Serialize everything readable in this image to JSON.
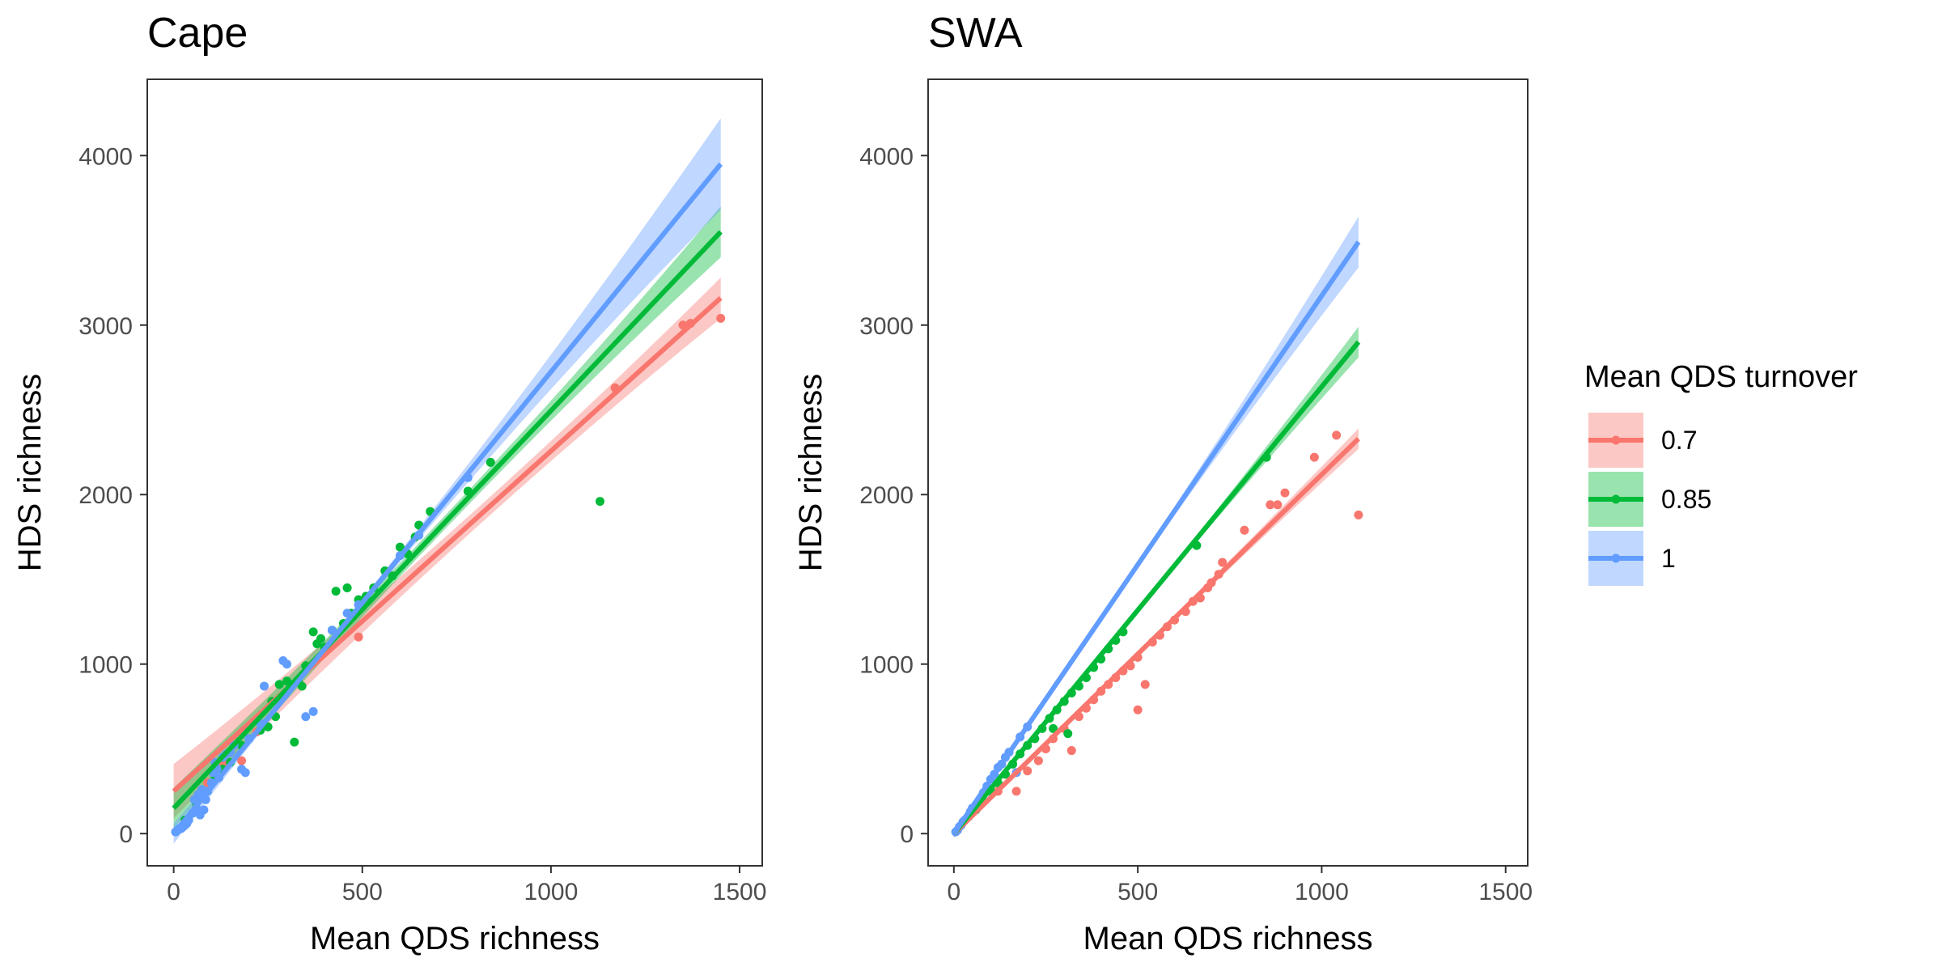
{
  "chart_data": [
    {
      "type": "scatter",
      "title": "Cape",
      "xlabel": "Mean QDS richness",
      "ylabel": "HDS richness",
      "xlim": [
        -70,
        1560
      ],
      "ylim": [
        -190,
        4450
      ],
      "x_ticks": [
        0,
        500,
        1000,
        1500
      ],
      "y_ticks": [
        0,
        1000,
        2000,
        3000,
        4000
      ],
      "grid": false,
      "series": [
        {
          "name": "0.7",
          "color": "#F8766D",
          "fit": {
            "x": [
              0,
              1450
            ],
            "y": [
              250,
              3160
            ]
          },
          "band_width": [
            160,
            55,
            120
          ],
          "points": [
            [
              180,
              430
            ],
            [
              490,
              1160
            ],
            [
              1170,
              2630
            ],
            [
              1350,
              3000
            ],
            [
              1370,
              3010
            ],
            [
              1450,
              3040
            ],
            [
              60,
              200
            ],
            [
              90,
              300
            ],
            [
              130,
              420
            ],
            [
              160,
              520
            ],
            [
              220,
              600
            ]
          ]
        },
        {
          "name": "0.85",
          "color": "#00BA38",
          "fit": {
            "x": [
              0,
              1450
            ],
            "y": [
              150,
              3550
            ]
          },
          "band_width": [
            120,
            40,
            150
          ],
          "points": [
            [
              30,
              80
            ],
            [
              60,
              180
            ],
            [
              90,
              250
            ],
            [
              110,
              330
            ],
            [
              130,
              380
            ],
            [
              150,
              420
            ],
            [
              180,
              520
            ],
            [
              200,
              560
            ],
            [
              230,
              610
            ],
            [
              250,
              630
            ],
            [
              260,
              780
            ],
            [
              270,
              690
            ],
            [
              280,
              880
            ],
            [
              300,
              900
            ],
            [
              320,
              540
            ],
            [
              330,
              900
            ],
            [
              340,
              870
            ],
            [
              350,
              990
            ],
            [
              370,
              1190
            ],
            [
              380,
              1120
            ],
            [
              390,
              1150
            ],
            [
              400,
              1100
            ],
            [
              420,
              1200
            ],
            [
              430,
              1430
            ],
            [
              450,
              1240
            ],
            [
              460,
              1450
            ],
            [
              470,
              1300
            ],
            [
              490,
              1380
            ],
            [
              510,
              1400
            ],
            [
              530,
              1450
            ],
            [
              560,
              1550
            ],
            [
              580,
              1520
            ],
            [
              600,
              1690
            ],
            [
              620,
              1650
            ],
            [
              640,
              1750
            ],
            [
              650,
              1820
            ],
            [
              680,
              1900
            ],
            [
              780,
              2020
            ],
            [
              840,
              2190
            ],
            [
              1130,
              1960
            ]
          ]
        },
        {
          "name": "1",
          "color": "#619CFF",
          "fit": {
            "x": [
              0,
              1450
            ],
            "y": [
              0,
              3950
            ]
          },
          "band_width": [
            60,
            45,
            270
          ],
          "points": [
            [
              5,
              10
            ],
            [
              10,
              20
            ],
            [
              15,
              30
            ],
            [
              20,
              30
            ],
            [
              25,
              40
            ],
            [
              30,
              50
            ],
            [
              35,
              60
            ],
            [
              40,
              80
            ],
            [
              50,
              120
            ],
            [
              55,
              200
            ],
            [
              60,
              150
            ],
            [
              65,
              230
            ],
            [
              70,
              110
            ],
            [
              75,
              260
            ],
            [
              80,
              140
            ],
            [
              85,
              200
            ],
            [
              90,
              250
            ],
            [
              100,
              300
            ],
            [
              105,
              360
            ],
            [
              110,
              420
            ],
            [
              115,
              380
            ],
            [
              120,
              330
            ],
            [
              130,
              450
            ],
            [
              140,
              470
            ],
            [
              150,
              480
            ],
            [
              160,
              520
            ],
            [
              180,
              380
            ],
            [
              190,
              360
            ],
            [
              200,
              560
            ],
            [
              230,
              650
            ],
            [
              240,
              870
            ],
            [
              290,
              1020
            ],
            [
              300,
              1000
            ],
            [
              350,
              690
            ],
            [
              370,
              720
            ],
            [
              420,
              1200
            ],
            [
              460,
              1300
            ],
            [
              490,
              1350
            ],
            [
              600,
              1640
            ],
            [
              650,
              1760
            ],
            [
              780,
              2100
            ]
          ]
        }
      ]
    },
    {
      "type": "scatter",
      "title": "SWA",
      "xlabel": "Mean QDS richness",
      "ylabel": "HDS richness",
      "xlim": [
        -70,
        1560
      ],
      "ylim": [
        -190,
        4450
      ],
      "x_ticks": [
        0,
        500,
        1000,
        1500
      ],
      "y_ticks": [
        0,
        1000,
        2000,
        3000,
        4000
      ],
      "grid": false,
      "series": [
        {
          "name": "0.7",
          "color": "#F8766D",
          "fit": {
            "x": [
              0,
              1100
            ],
            "y": [
              0,
              2330
            ]
          },
          "band_width": [
            25,
            15,
            60
          ],
          "points": [
            [
              120,
              250
            ],
            [
              170,
              250
            ],
            [
              200,
              370
            ],
            [
              230,
              430
            ],
            [
              250,
              500
            ],
            [
              270,
              560
            ],
            [
              300,
              620
            ],
            [
              320,
              490
            ],
            [
              340,
              690
            ],
            [
              360,
              740
            ],
            [
              380,
              790
            ],
            [
              400,
              840
            ],
            [
              420,
              880
            ],
            [
              440,
              920
            ],
            [
              460,
              960
            ],
            [
              480,
              990
            ],
            [
              500,
              1040
            ],
            [
              500,
              730
            ],
            [
              520,
              880
            ],
            [
              540,
              1130
            ],
            [
              560,
              1170
            ],
            [
              580,
              1220
            ],
            [
              600,
              1260
            ],
            [
              630,
              1310
            ],
            [
              650,
              1370
            ],
            [
              670,
              1390
            ],
            [
              690,
              1450
            ],
            [
              700,
              1480
            ],
            [
              720,
              1530
            ],
            [
              730,
              1600
            ],
            [
              790,
              1790
            ],
            [
              860,
              1940
            ],
            [
              880,
              1940
            ],
            [
              900,
              2010
            ],
            [
              980,
              2220
            ],
            [
              1040,
              2350
            ],
            [
              1100,
              1880
            ]
          ]
        },
        {
          "name": "0.85",
          "color": "#00BA38",
          "fit": {
            "x": [
              0,
              1100
            ],
            "y": [
              0,
              2900
            ]
          },
          "band_width": [
            20,
            12,
            90
          ],
          "points": [
            [
              40,
              100
            ],
            [
              60,
              140
            ],
            [
              80,
              190
            ],
            [
              100,
              250
            ],
            [
              120,
              300
            ],
            [
              140,
              350
            ],
            [
              160,
              410
            ],
            [
              180,
              470
            ],
            [
              200,
              520
            ],
            [
              220,
              560
            ],
            [
              240,
              620
            ],
            [
              260,
              680
            ],
            [
              270,
              620
            ],
            [
              280,
              730
            ],
            [
              300,
              780
            ],
            [
              310,
              590
            ],
            [
              320,
              830
            ],
            [
              340,
              870
            ],
            [
              360,
              920
            ],
            [
              380,
              980
            ],
            [
              400,
              1030
            ],
            [
              420,
              1090
            ],
            [
              440,
              1140
            ],
            [
              460,
              1190
            ],
            [
              660,
              1700
            ],
            [
              850,
              2220
            ]
          ]
        },
        {
          "name": "1",
          "color": "#619CFF",
          "fit": {
            "x": [
              0,
              1100
            ],
            "y": [
              0,
              3490
            ]
          },
          "band_width": [
            25,
            20,
            150
          ],
          "points": [
            [
              5,
              10
            ],
            [
              10,
              20
            ],
            [
              15,
              40
            ],
            [
              20,
              50
            ],
            [
              25,
              70
            ],
            [
              30,
              80
            ],
            [
              40,
              100
            ],
            [
              45,
              130
            ],
            [
              50,
              150
            ],
            [
              60,
              170
            ],
            [
              70,
              200
            ],
            [
              80,
              240
            ],
            [
              90,
              280
            ],
            [
              100,
              320
            ],
            [
              110,
              350
            ],
            [
              120,
              390
            ],
            [
              130,
              410
            ],
            [
              140,
              450
            ],
            [
              150,
              480
            ],
            [
              170,
              360
            ],
            [
              180,
              570
            ],
            [
              200,
              630
            ]
          ]
        }
      ]
    }
  ],
  "legend": {
    "title": "Mean QDS turnover",
    "items": [
      {
        "label": "0.7",
        "color": "#F8766D"
      },
      {
        "label": "0.85",
        "color": "#00BA38"
      },
      {
        "label": "1",
        "color": "#619CFF"
      }
    ]
  }
}
